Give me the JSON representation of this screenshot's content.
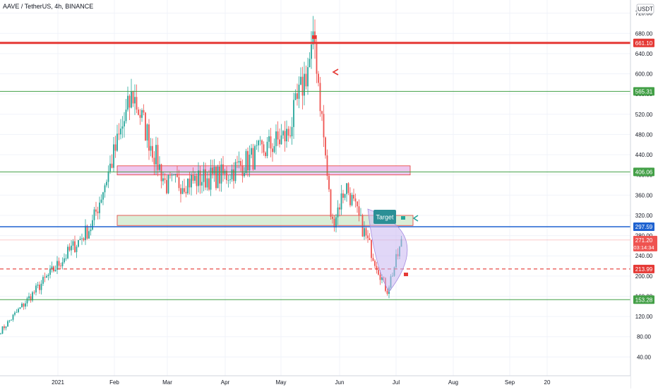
{
  "header": {
    "title": "AAVE / TetherUS, 4h, BINANCE",
    "currency_badge": "USDT"
  },
  "colors": {
    "up": "#26a69a",
    "down": "#ef5350",
    "red_line": "#e53935",
    "green_line": "#43a047",
    "blue_line": "#1e62d0",
    "pink_zone_fill": "#e8b4e8",
    "green_zone_fill": "#cde8c9",
    "target_box": "#2b8f96",
    "axis_text": "#131722"
  },
  "chart_data": {
    "type": "candlestick",
    "price_axis": {
      "ticks": [
        40,
        80,
        120,
        160,
        200,
        240,
        280,
        320,
        360,
        400,
        440,
        480,
        520,
        560,
        600,
        640,
        680,
        720
      ],
      "tick_labels": [
        "40.00",
        "80.00",
        "120.00",
        "160.00",
        "200.00",
        "240.00",
        "280.00",
        "320.00",
        "360.00",
        "400.00",
        "440.00",
        "480.00",
        "520.00",
        "560.00",
        "600.00",
        "640.00",
        "680.00",
        "720.00"
      ]
    },
    "time_axis": {
      "labels": [
        "2021",
        "Feb",
        "Mar",
        "Apr",
        "May",
        "Jun",
        "Jul",
        "Aug",
        "Sep",
        "20"
      ]
    },
    "horizontal_levels": [
      {
        "id": "level-661",
        "value": 661.1,
        "label": "661.10",
        "style": "solid",
        "color": "#e53935",
        "width": 3
      },
      {
        "id": "level-565",
        "value": 565.31,
        "label": "565.31",
        "style": "solid",
        "color": "#43a047",
        "width": 1
      },
      {
        "id": "level-406",
        "value": 406.06,
        "label": "406.06",
        "style": "solid",
        "color": "#43a047",
        "width": 1
      },
      {
        "id": "level-297",
        "value": 297.59,
        "label": "297.59",
        "style": "solid",
        "color": "#1e62d0",
        "width": 1.5
      },
      {
        "id": "level-213",
        "value": 213.99,
        "label": "213.99",
        "style": "dashed",
        "color": "#e53935",
        "width": 1.2
      },
      {
        "id": "level-153",
        "value": 153.28,
        "label": "153.28",
        "style": "solid",
        "color": "#43a047",
        "width": 1
      }
    ],
    "last_price": {
      "value": 271.2,
      "label": "271.20",
      "countdown": "03:14:34"
    },
    "zones": [
      {
        "id": "resistance-zone",
        "from": "Feb",
        "to": "Jul",
        "low": 400,
        "high": 418
      },
      {
        "id": "support-zone",
        "from": "Feb",
        "to": "Jul",
        "low": 300,
        "high": 320
      }
    ],
    "annotations": {
      "target_label": "Target"
    },
    "series_summary": [
      {
        "period": "2021",
        "price": 90
      },
      {
        "period": "Feb",
        "price": 300
      },
      {
        "period": "Feb",
        "price": 560
      },
      {
        "period": "Mar",
        "price": 380
      },
      {
        "period": "Apr",
        "price": 400
      },
      {
        "period": "May",
        "price": 480
      },
      {
        "period": "May",
        "price": 661.1
      },
      {
        "period": "Jun",
        "price": 300
      },
      {
        "period": "Jun",
        "price": 380
      },
      {
        "period": "Jul",
        "price": 170
      },
      {
        "period": "Jul",
        "price": 271.2
      }
    ]
  }
}
